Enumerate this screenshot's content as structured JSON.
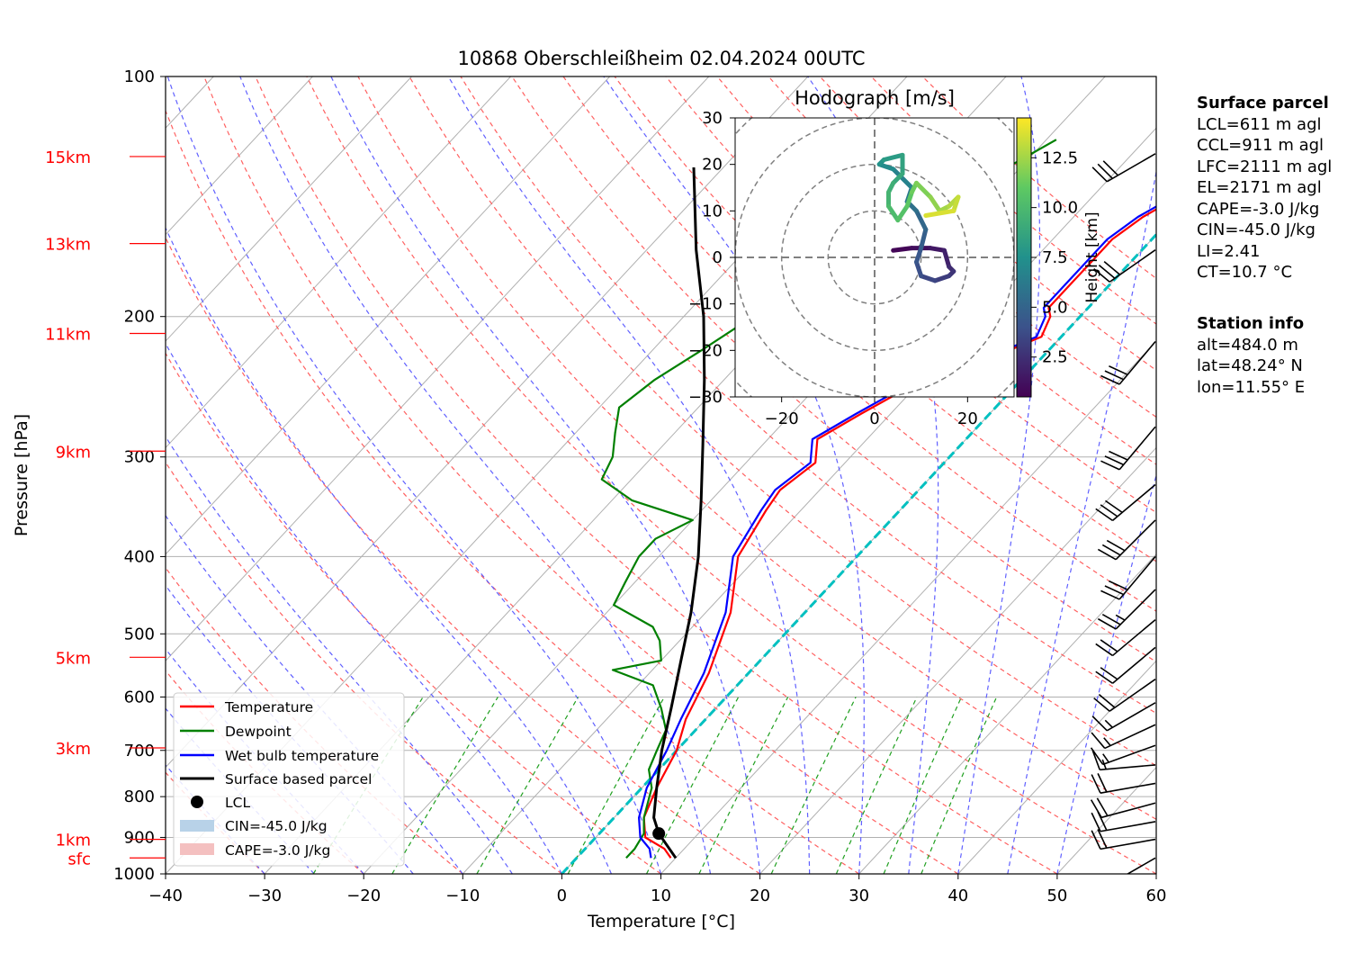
{
  "chart_data": {
    "type": "skew-t log-p diagram",
    "title": "10868 Oberschleißheim 02.04.2024 00UTC",
    "xlabel": "Temperature [°C]",
    "ylabel": "Pressure [hPa]",
    "xlim": [
      -40,
      60
    ],
    "ylim": [
      1000,
      100
    ],
    "y_scale": "log",
    "x_ticks": [
      "−40",
      "−30",
      "−20",
      "−10",
      "0",
      "10",
      "20",
      "30",
      "40",
      "50",
      "60"
    ],
    "y_ticks": [
      "100",
      "200",
      "300",
      "400",
      "500",
      "600",
      "700",
      "800",
      "900",
      "1000"
    ],
    "height_labels": [
      {
        "label": "15km",
        "p": 126
      },
      {
        "label": "13km",
        "p": 162
      },
      {
        "label": "11km",
        "p": 210
      },
      {
        "label": "9km",
        "p": 295
      },
      {
        "label": "5km",
        "p": 535
      },
      {
        "label": "3km",
        "p": 695
      },
      {
        "label": "1km",
        "p": 905
      },
      {
        "label": "sfc",
        "p": 955
      }
    ],
    "legend": {
      "position": "lower-left",
      "entries": [
        "Temperature",
        "Dewpoint",
        "Wet bulb temperature",
        "Surface based parcel",
        "LCL",
        "CIN=-45.0 J/kg",
        "CAPE=-3.0 J/kg"
      ]
    },
    "series": [
      {
        "name": "Temperature",
        "color": "#ff0000",
        "points": [
          [
            9.5,
            955
          ],
          [
            8,
            930
          ],
          [
            5,
            900
          ],
          [
            3,
            850
          ],
          [
            1.5,
            780
          ],
          [
            0,
            700
          ],
          [
            -2,
            640
          ],
          [
            -4,
            560
          ],
          [
            -7.5,
            470
          ],
          [
            -12,
            400
          ],
          [
            -13.5,
            350
          ],
          [
            -14,
            330
          ],
          [
            -13,
            305
          ],
          [
            -15,
            285
          ],
          [
            -13,
            265
          ],
          [
            -10,
            240
          ],
          [
            -5,
            225
          ],
          [
            -2,
            212
          ],
          [
            -3,
            200
          ],
          [
            -4,
            195
          ],
          [
            -4,
            183
          ],
          [
            -4,
            170
          ],
          [
            -4,
            160
          ],
          [
            -3,
            150
          ],
          [
            -1,
            140
          ],
          [
            3,
            133
          ],
          [
            6,
            126
          ],
          [
            10,
            115
          ],
          [
            13,
            108
          ]
        ]
      },
      {
        "name": "Dewpoint",
        "color": "#008000",
        "points": [
          [
            5,
            955
          ],
          [
            5,
            930
          ],
          [
            4.5,
            890
          ],
          [
            3,
            850
          ],
          [
            1,
            780
          ],
          [
            -1,
            740
          ],
          [
            -2,
            700
          ],
          [
            -3,
            660
          ],
          [
            -5.5,
            620
          ],
          [
            -8.5,
            580
          ],
          [
            -14,
            555
          ],
          [
            -10,
            540
          ],
          [
            -12,
            510
          ],
          [
            -14,
            490
          ],
          [
            -20,
            460
          ],
          [
            -21,
            430
          ],
          [
            -22,
            400
          ],
          [
            -22,
            380
          ],
          [
            -20,
            360
          ],
          [
            -28,
            340
          ],
          [
            -33,
            320
          ],
          [
            -34,
            300
          ],
          [
            -36,
            280
          ],
          [
            -38,
            260
          ],
          [
            -37,
            240
          ],
          [
            -35,
            220
          ],
          [
            -33,
            200
          ],
          [
            -30,
            180
          ],
          [
            -28,
            165
          ],
          [
            -25,
            148
          ],
          [
            -22,
            133
          ],
          [
            -19,
            120
          ]
        ]
      },
      {
        "name": "Wet bulb temperature",
        "color": "#0000ff",
        "points": [
          [
            7.5,
            955
          ],
          [
            6.5,
            930
          ],
          [
            4.5,
            900
          ],
          [
            2.5,
            850
          ],
          [
            0.5,
            780
          ],
          [
            -1,
            700
          ],
          [
            -2.5,
            640
          ],
          [
            -4.5,
            560
          ],
          [
            -8,
            470
          ],
          [
            -12.5,
            400
          ],
          [
            -14,
            350
          ],
          [
            -14.5,
            330
          ],
          [
            -13.5,
            305
          ],
          [
            -15.5,
            285
          ],
          [
            -13.5,
            265
          ],
          [
            -10.5,
            240
          ],
          [
            -5.5,
            225
          ],
          [
            -2.5,
            212
          ],
          [
            -3.5,
            200
          ],
          [
            -4.5,
            195
          ],
          [
            -4.5,
            183
          ],
          [
            -4.5,
            170
          ],
          [
            -4.5,
            160
          ],
          [
            -3.5,
            150
          ],
          [
            -1.5,
            140
          ],
          [
            2.5,
            133
          ],
          [
            5.5,
            126
          ],
          [
            9.5,
            115
          ],
          [
            12,
            108
          ]
        ]
      },
      {
        "name": "Surface based parcel",
        "color": "#000000",
        "points": [
          [
            10,
            955
          ],
          [
            6,
            890
          ],
          [
            4,
            850
          ],
          [
            1.5,
            780
          ],
          [
            -1.5,
            700
          ],
          [
            -4.5,
            620
          ],
          [
            -8,
            540
          ],
          [
            -11.5,
            470
          ],
          [
            -16,
            400
          ],
          [
            -21,
            340
          ],
          [
            -26,
            290
          ],
          [
            -32,
            240
          ],
          [
            -38,
            200
          ],
          [
            -45,
            165
          ],
          [
            -53,
            130
          ]
        ]
      }
    ],
    "lcl": {
      "t": 6,
      "p": 890
    },
    "cin": "-45.0 J/kg",
    "cape": "-3.0 J/kg",
    "hodograph": {
      "title": "Hodograph [m/s]",
      "xlim": [
        -30,
        30
      ],
      "ylim": [
        -30,
        30
      ],
      "ticks": [
        "−30",
        "−20",
        "−10",
        "0",
        "10",
        "20",
        "30"
      ],
      "x_ticks": [
        "−20",
        "0",
        "20"
      ],
      "colorbar_label": "Height [km]",
      "colorbar_ticks": [
        "2.5",
        "5.0",
        "7.5",
        "10.0",
        "12.5"
      ],
      "colorbar_range": [
        0.5,
        14.5
      ],
      "points": [
        [
          4,
          1.5,
          0.5
        ],
        [
          8,
          2,
          0.9
        ],
        [
          12,
          2,
          1.3
        ],
        [
          15,
          1.5,
          1.7
        ],
        [
          16,
          -2,
          2.1
        ],
        [
          17,
          -3,
          2.5
        ],
        [
          16,
          -4,
          2.9
        ],
        [
          13,
          -5,
          3.3
        ],
        [
          10,
          -4,
          3.7
        ],
        [
          9,
          -1,
          4.1
        ],
        [
          10,
          2,
          4.5
        ],
        [
          11,
          6,
          4.9
        ],
        [
          9,
          10,
          5.4
        ],
        [
          7,
          12,
          5.9
        ],
        [
          8,
          15,
          6.4
        ],
        [
          4,
          19,
          6.9
        ],
        [
          1,
          20,
          7.4
        ],
        [
          2,
          21,
          7.9
        ],
        [
          6,
          22,
          8.3
        ],
        [
          6,
          18,
          8.7
        ],
        [
          4,
          16,
          9.1
        ],
        [
          3,
          14,
          9.5
        ],
        [
          3,
          11,
          9.9
        ],
        [
          5,
          8,
          10.3
        ],
        [
          7,
          11,
          10.7
        ],
        [
          8,
          14,
          11.1
        ],
        [
          9,
          16,
          11.5
        ],
        [
          12,
          13,
          11.9
        ],
        [
          14,
          10,
          12.3
        ],
        [
          16,
          11,
          12.7
        ],
        [
          18,
          13,
          13.1
        ],
        [
          17,
          10,
          13.5
        ],
        [
          11,
          9,
          13.9
        ]
      ]
    },
    "wind_barbs": [
      {
        "p": 955,
        "speed": 5,
        "dir": 240
      },
      {
        "p": 905,
        "speed": 20,
        "dir": 260
      },
      {
        "p": 860,
        "speed": 20,
        "dir": 260
      },
      {
        "p": 815,
        "speed": 20,
        "dir": 255
      },
      {
        "p": 770,
        "speed": 20,
        "dir": 260
      },
      {
        "p": 730,
        "speed": 15,
        "dir": 265
      },
      {
        "p": 690,
        "speed": 15,
        "dir": 250
      },
      {
        "p": 650,
        "speed": 15,
        "dir": 245
      },
      {
        "p": 610,
        "speed": 15,
        "dir": 240
      },
      {
        "p": 570,
        "speed": 20,
        "dir": 235
      },
      {
        "p": 520,
        "speed": 20,
        "dir": 230
      },
      {
        "p": 480,
        "speed": 20,
        "dir": 230
      },
      {
        "p": 440,
        "speed": 25,
        "dir": 225
      },
      {
        "p": 400,
        "speed": 30,
        "dir": 220
      },
      {
        "p": 360,
        "speed": 30,
        "dir": 225
      },
      {
        "p": 325,
        "speed": 30,
        "dir": 230
      },
      {
        "p": 275,
        "speed": 30,
        "dir": 220
      },
      {
        "p": 215,
        "speed": 30,
        "dir": 220
      },
      {
        "p": 165,
        "speed": 30,
        "dir": 235
      },
      {
        "p": 125,
        "speed": 30,
        "dir": 240
      }
    ]
  },
  "side_panel": {
    "surface_header": "Surface parcel",
    "surface_lines": [
      "LCL=611 m agl",
      "CCL=911 m agl",
      "LFC=2111 m agl",
      "EL=2171 m agl",
      "CAPE=-3.0 J/kg",
      "CIN=-45.0 J/kg",
      "LI=2.41",
      "CT=10.7 °C"
    ],
    "station_header": "Station info",
    "station_lines": [
      "alt=484.0 m",
      "lat=48.24° N",
      "lon=11.55° E"
    ]
  },
  "colors": {
    "temperature": "#ff0000",
    "dewpoint": "#008000",
    "wet_bulb": "#0000ff",
    "parcel": "#000000",
    "dry_adiabat": "#ff6060",
    "moist_adiabat": "#6060ff",
    "mixing_ratio": "#20a020",
    "freezing_isotherm": "#00c0c0",
    "cin_fill": "#b8d2e8",
    "cape_fill": "#f4c0c0"
  }
}
